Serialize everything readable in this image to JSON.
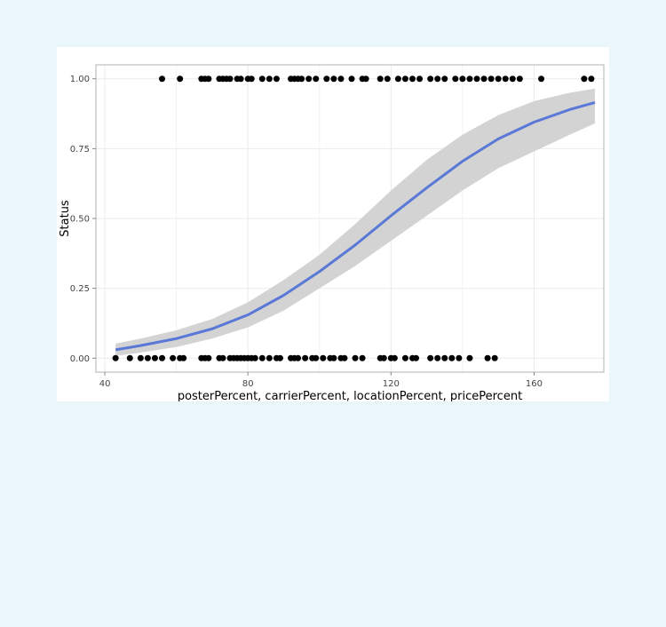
{
  "chart_data": {
    "type": "scatter",
    "xlabel": "posterPercent, carrierPercent, locationPercent, pricePercent",
    "ylabel": "Status",
    "xlim": [
      37.5,
      179.5
    ],
    "ylim": [
      -0.05,
      1.05
    ],
    "x_ticks": [
      40,
      80,
      120,
      160
    ],
    "x_tick_labels": [
      "40",
      "80",
      "120",
      "160"
    ],
    "y_ticks": [
      0,
      0.25,
      0.5,
      0.75,
      1
    ],
    "y_tick_labels": [
      "0.00",
      "0.25",
      "0.50",
      "0.75",
      "1.00"
    ],
    "grid": true,
    "legend": "none",
    "series": [
      {
        "type": "scatter",
        "color": "#000000",
        "points_y1_x": [
          56,
          61,
          67,
          68,
          69,
          72,
          73,
          74,
          75,
          77,
          78,
          80,
          81,
          84,
          86,
          88,
          92,
          93,
          94,
          95,
          97,
          99,
          102,
          104,
          106,
          109,
          112,
          113,
          117,
          119,
          122,
          124,
          126,
          128,
          131,
          133,
          135,
          138,
          140,
          142,
          144,
          146,
          148,
          150,
          152,
          154,
          156,
          162,
          174,
          176
        ],
        "points_y0_x": [
          43,
          47,
          50,
          52,
          54,
          56,
          59,
          61,
          62,
          67,
          68,
          69,
          72,
          73,
          75,
          76,
          77,
          78,
          79,
          80,
          81,
          82,
          84,
          86,
          88,
          89,
          92,
          93,
          94,
          96,
          98,
          99,
          101,
          103,
          104,
          106,
          107,
          110,
          112,
          117,
          118,
          120,
          121,
          124,
          126,
          127,
          131,
          133,
          135,
          137,
          139,
          142,
          147,
          149
        ]
      },
      {
        "type": "line",
        "color": "#5a78d6",
        "x": [
          43,
          50,
          60,
          70,
          80,
          90,
          100,
          110,
          120,
          130,
          140,
          150,
          160,
          170,
          177
        ],
        "y": [
          0.03,
          0.045,
          0.07,
          0.105,
          0.155,
          0.225,
          0.31,
          0.405,
          0.51,
          0.61,
          0.705,
          0.785,
          0.845,
          0.89,
          0.915
        ],
        "band_lower": [
          0.008,
          0.02,
          0.04,
          0.07,
          0.11,
          0.17,
          0.25,
          0.33,
          0.42,
          0.51,
          0.6,
          0.68,
          0.74,
          0.8,
          0.84
        ],
        "band_upper": [
          0.052,
          0.07,
          0.1,
          0.14,
          0.2,
          0.28,
          0.37,
          0.48,
          0.6,
          0.71,
          0.8,
          0.87,
          0.92,
          0.95,
          0.965
        ],
        "band_color": "#d3d3d3"
      }
    ]
  }
}
